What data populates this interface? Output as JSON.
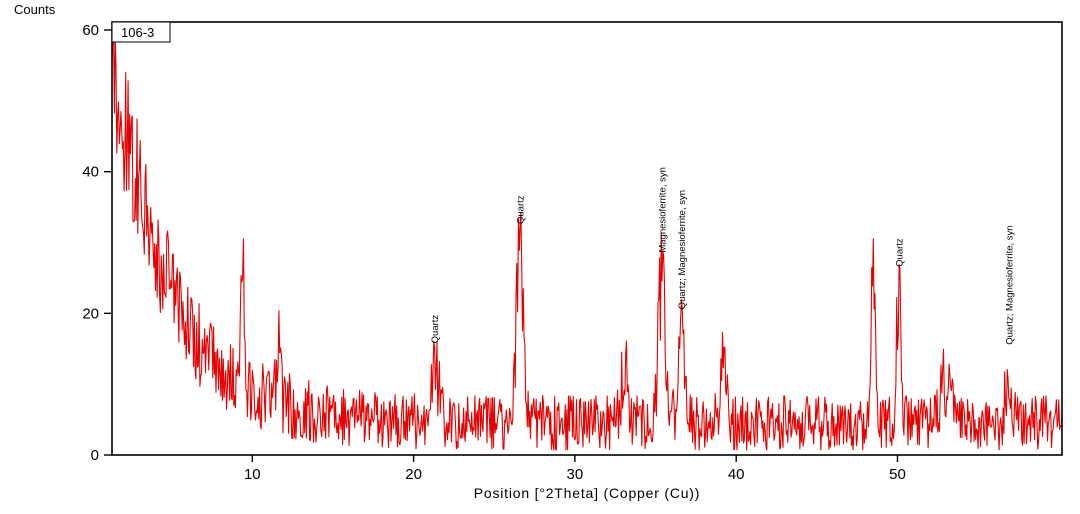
{
  "chart_data": {
    "type": "line",
    "title": "106-3",
    "xlabel": "Position [°2Theta] (Copper (Cu))",
    "ylabel": "Counts",
    "xlim": [
      1.3,
      60.2
    ],
    "ylim": [
      0,
      60
    ],
    "x_ticks": [
      10,
      20,
      30,
      40,
      50
    ],
    "y_ticks": [
      0,
      20,
      40,
      60
    ],
    "grid": false,
    "legend": "none",
    "series_color": "#e60000",
    "trace": {
      "baseline": 4.5,
      "decay_amplitude": 52,
      "decay_tau": 3.6,
      "noise_base": 1.1,
      "noise_scale": 1.3,
      "step": 0.05,
      "seed": 20231
    },
    "peaks": [
      {
        "position": 9.4,
        "height": 19,
        "width": 0.1,
        "label": ""
      },
      {
        "position": 11.6,
        "height": 8,
        "width": 0.12,
        "label": ""
      },
      {
        "position": 21.3,
        "height": 8,
        "width": 0.25,
        "label": "Quartz"
      },
      {
        "position": 26.6,
        "height": 25,
        "width": 0.22,
        "label": "Quartz"
      },
      {
        "position": 33.1,
        "height": 9,
        "width": 0.2,
        "label": ""
      },
      {
        "position": 35.4,
        "height": 21,
        "width": 0.22,
        "label": "Magnesioferrite, syn"
      },
      {
        "position": 36.6,
        "height": 13,
        "width": 0.2,
        "label": "Quartz; Magnesioferrite, syn"
      },
      {
        "position": 39.2,
        "height": 9,
        "width": 0.2,
        "label": ""
      },
      {
        "position": 48.5,
        "height": 26,
        "width": 0.1,
        "label": ""
      },
      {
        "position": 50.1,
        "height": 19,
        "width": 0.15,
        "label": "Quartz"
      },
      {
        "position": 53.0,
        "height": 6,
        "width": 0.3,
        "label": ""
      },
      {
        "position": 56.9,
        "height": 8,
        "width": 0.2,
        "label": "Quartz; Magnesioferrite, syn"
      }
    ]
  }
}
